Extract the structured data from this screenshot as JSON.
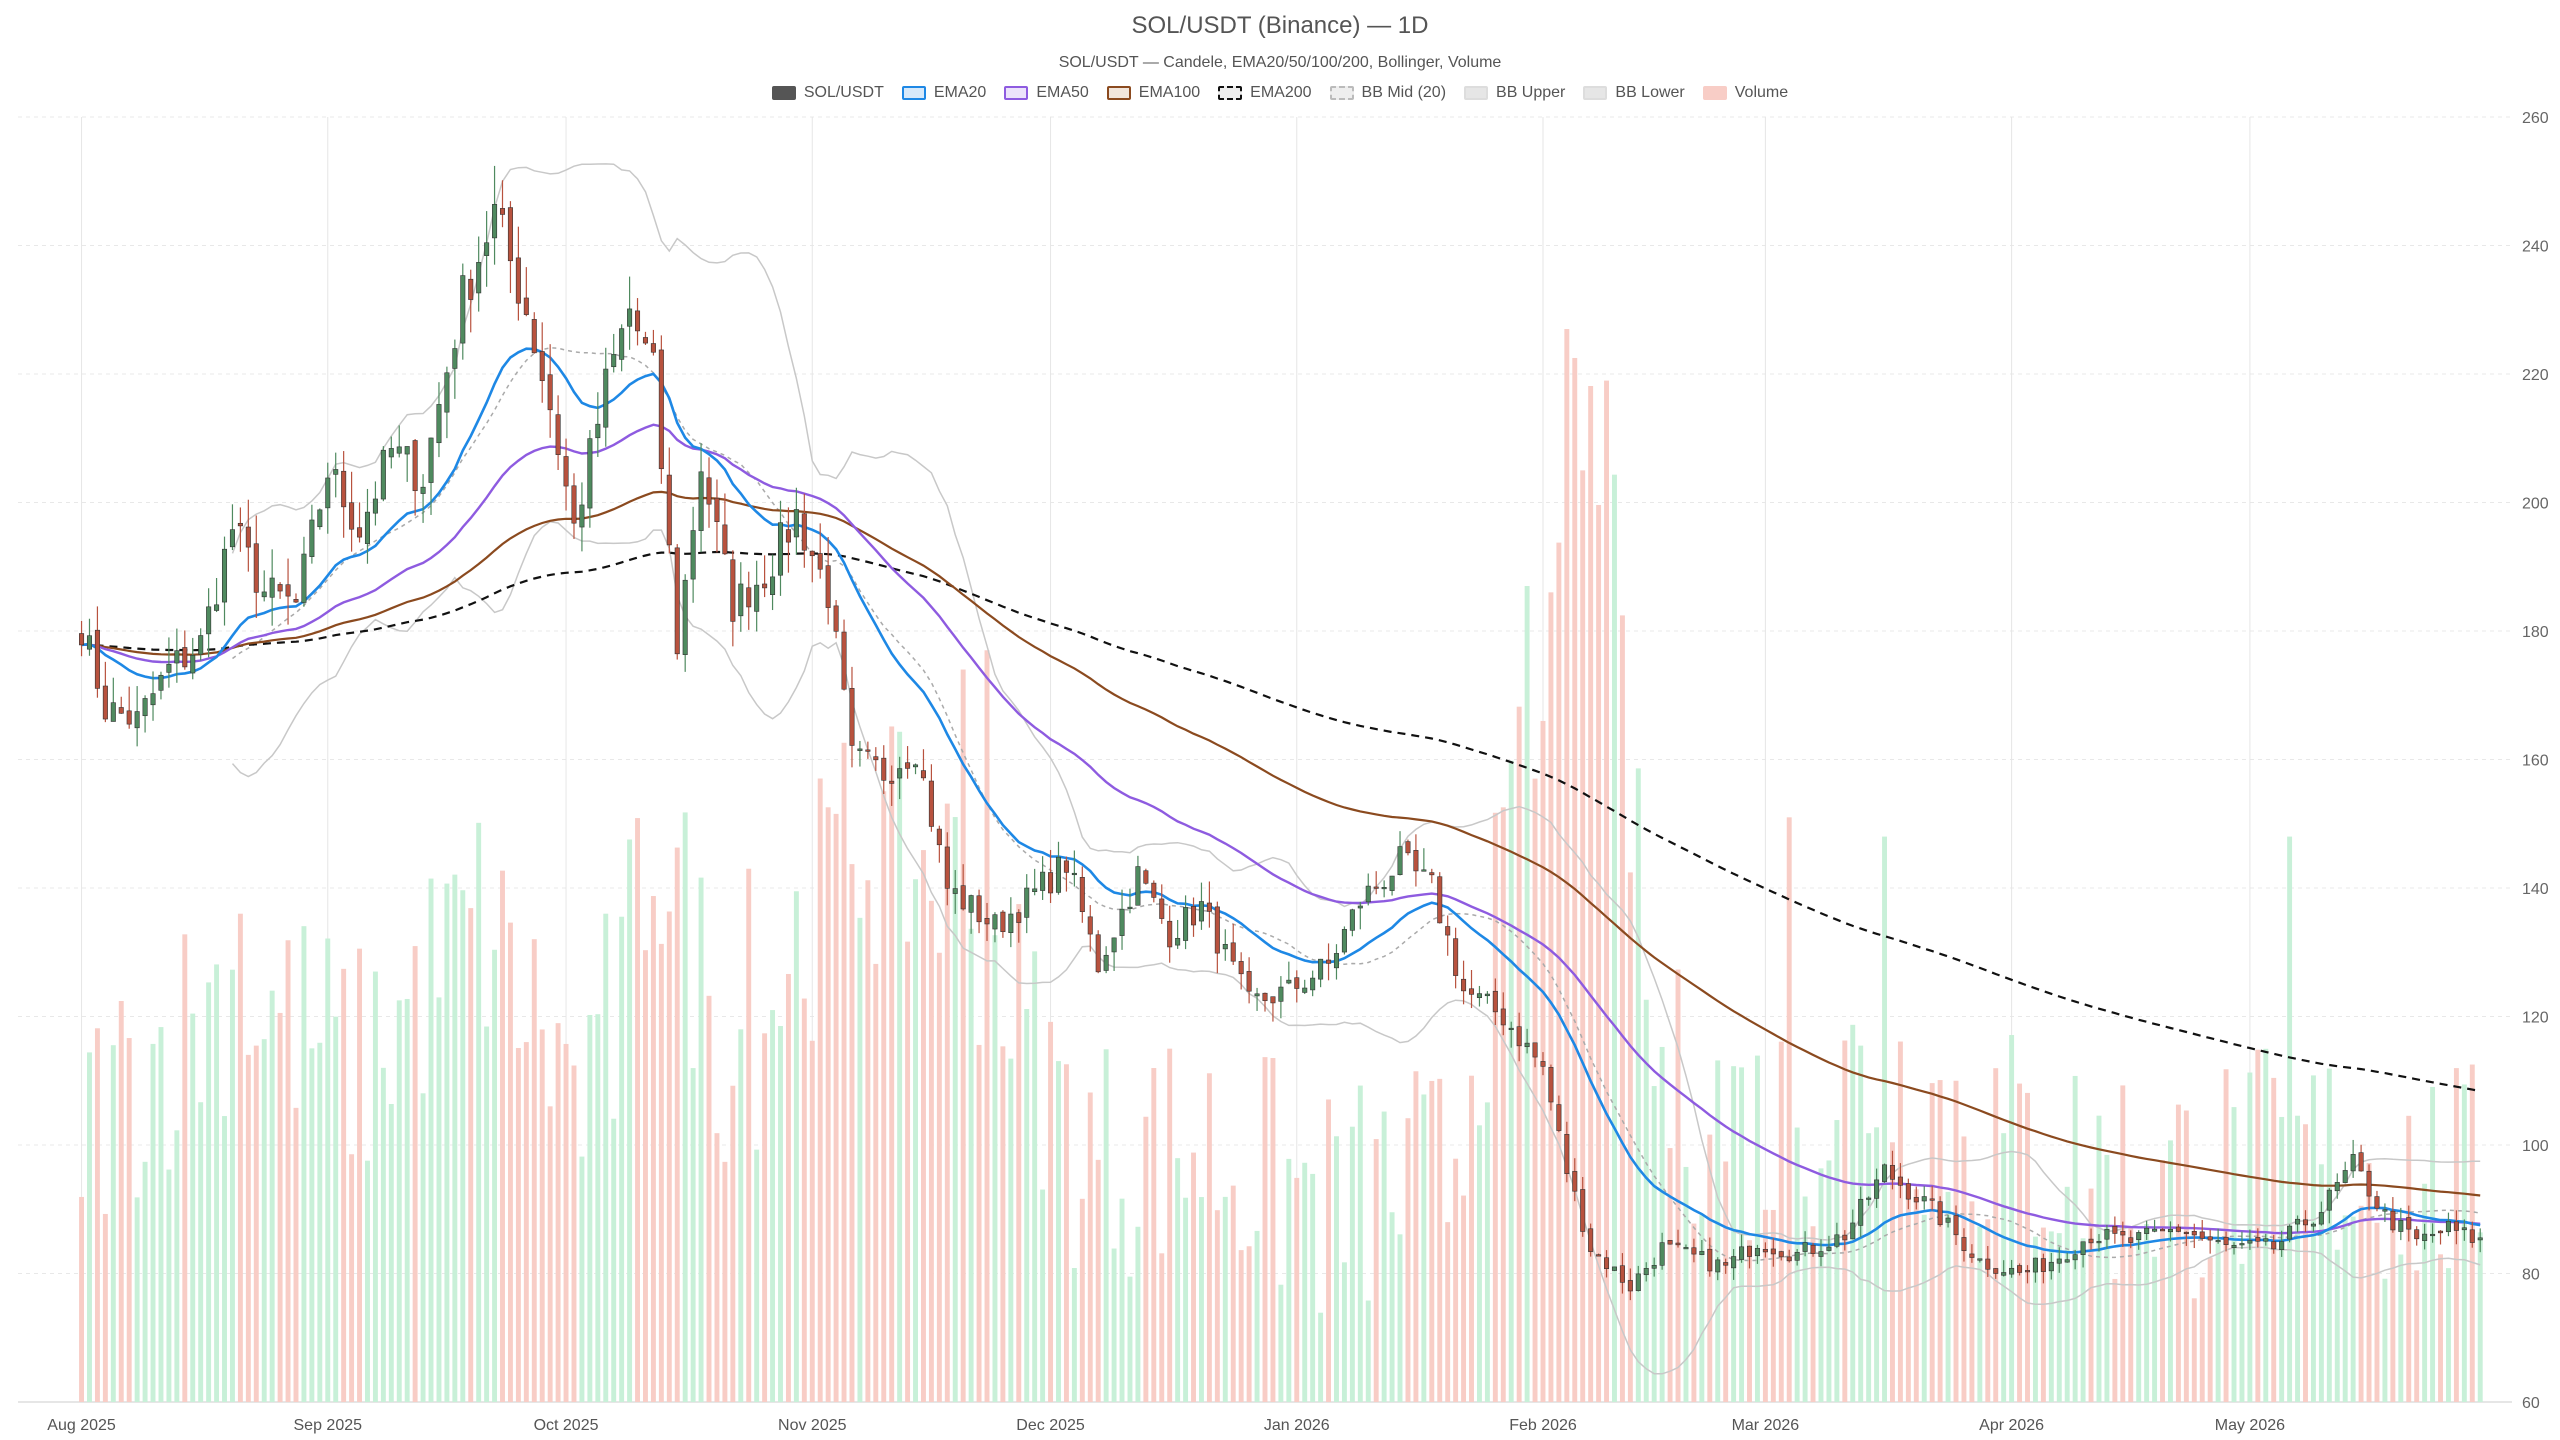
{
  "title": "SOL/USDT (Binance) — 1D",
  "subtitle": "SOL/USDT — Candele, EMA20/50/100/200, Bollinger, Volume",
  "legend": [
    {
      "label": "SOL/USDT",
      "color": "#555555",
      "style": "solid"
    },
    {
      "label": "EMA20",
      "color": "#1e88e5",
      "style": "solid"
    },
    {
      "label": "EMA50",
      "color": "#8e5be0",
      "style": "solid"
    },
    {
      "label": "EMA100",
      "color": "#8b4a1f",
      "style": "solid"
    },
    {
      "label": "EMA200",
      "color": "#111111",
      "style": "dashed"
    },
    {
      "label": "BB Mid (20)",
      "color": "#aaaaaa",
      "style": "dashed"
    },
    {
      "label": "BB Upper",
      "color": "#bbbbbb",
      "style": "solid"
    },
    {
      "label": "BB Lower",
      "color": "#bbbbbb",
      "style": "solid"
    },
    {
      "label": "Volume",
      "color": "#f4b4ac",
      "style": "solid"
    }
  ],
  "chart_data": {
    "type": "candlestick",
    "x_ticks": [
      "Aug 2025",
      "Sep 2025",
      "Oct 2025",
      "Nov 2025",
      "Dec 2025",
      "Jan 2026",
      "Feb 2026",
      "Mar 2026",
      "Apr 2026",
      "May 2026"
    ],
    "y_ticks": [
      60,
      80,
      100,
      120,
      140,
      160,
      180,
      200,
      220,
      240,
      260
    ],
    "ylim": [
      60,
      260
    ],
    "grid": true,
    "colors": {
      "up": "#4f8a5f",
      "down": "#b8523e",
      "vol_up": "#c8f0d8",
      "vol_down": "#f8cdc6"
    },
    "close_anchors": [
      [
        "2025-08-01",
        181
      ],
      [
        "2025-08-04",
        168
      ],
      [
        "2025-08-08",
        166
      ],
      [
        "2025-08-12",
        174
      ],
      [
        "2025-08-16",
        178
      ],
      [
        "2025-08-20",
        196
      ],
      [
        "2025-08-24",
        186
      ],
      [
        "2025-08-28",
        184
      ],
      [
        "2025-09-01",
        205
      ],
      [
        "2025-09-05",
        196
      ],
      [
        "2025-09-09",
        208
      ],
      [
        "2025-09-13",
        204
      ],
      [
        "2025-09-18",
        232
      ],
      [
        "2025-09-22",
        245
      ],
      [
        "2025-09-26",
        230
      ],
      [
        "2025-09-29",
        215
      ],
      [
        "2025-10-02",
        196
      ],
      [
        "2025-10-06",
        218
      ],
      [
        "2025-10-09",
        230
      ],
      [
        "2025-10-12",
        220
      ],
      [
        "2025-10-15",
        178
      ],
      [
        "2025-10-18",
        206
      ],
      [
        "2025-10-22",
        184
      ],
      [
        "2025-10-26",
        189
      ],
      [
        "2025-10-30",
        198
      ],
      [
        "2025-11-03",
        186
      ],
      [
        "2025-11-06",
        160
      ],
      [
        "2025-11-10",
        158
      ],
      [
        "2025-11-14",
        162
      ],
      [
        "2025-11-18",
        140
      ],
      [
        "2025-11-24",
        134
      ],
      [
        "2025-11-28",
        138
      ],
      [
        "2025-12-03",
        144
      ],
      [
        "2025-12-07",
        128
      ],
      [
        "2025-12-12",
        142
      ],
      [
        "2025-12-16",
        133
      ],
      [
        "2025-12-20",
        137
      ],
      [
        "2025-12-26",
        122
      ],
      [
        "2025-12-31",
        124
      ],
      [
        "2026-01-05",
        128
      ],
      [
        "2026-01-09",
        138
      ],
      [
        "2026-01-14",
        144
      ],
      [
        "2026-01-18",
        140
      ],
      [
        "2026-01-22",
        124
      ],
      [
        "2026-01-27",
        120
      ],
      [
        "2026-02-01",
        112
      ],
      [
        "2026-02-04",
        96
      ],
      [
        "2026-02-07",
        84
      ],
      [
        "2026-02-12",
        78
      ],
      [
        "2026-02-16",
        84
      ],
      [
        "2026-02-24",
        81
      ],
      [
        "2026-02-28",
        85
      ],
      [
        "2026-03-05",
        83
      ],
      [
        "2026-03-11",
        86
      ],
      [
        "2026-03-16",
        96
      ],
      [
        "2026-03-22",
        90
      ],
      [
        "2026-03-28",
        82
      ],
      [
        "2026-04-02",
        80
      ],
      [
        "2026-04-06",
        82
      ],
      [
        "2026-04-11",
        86
      ],
      [
        "2026-04-16",
        85
      ],
      [
        "2026-04-22",
        87
      ],
      [
        "2026-04-28",
        84
      ],
      [
        "2026-05-04",
        84
      ],
      [
        "2026-05-10",
        90
      ],
      [
        "2026-05-14",
        97
      ],
      [
        "2026-05-18",
        89
      ],
      [
        "2026-05-22",
        85
      ],
      [
        "2026-05-26",
        87
      ],
      [
        "2026-05-30",
        85
      ]
    ],
    "volume_anchors": [
      [
        "2025-08-01",
        103
      ],
      [
        "2025-08-20",
        125
      ],
      [
        "2025-09-05",
        112
      ],
      [
        "2025-09-20",
        135
      ],
      [
        "2025-10-05",
        102
      ],
      [
        "2025-10-12",
        150
      ],
      [
        "2025-10-22",
        112
      ],
      [
        "2025-11-06",
        148
      ],
      [
        "2025-11-20",
        140
      ],
      [
        "2025-12-05",
        98
      ],
      [
        "2025-12-20",
        100
      ],
      [
        "2026-01-05",
        90
      ],
      [
        "2026-01-20",
        95
      ],
      [
        "2026-02-01",
        170
      ],
      [
        "2026-02-07",
        230
      ],
      [
        "2026-02-15",
        110
      ],
      [
        "2026-03-01",
        102
      ],
      [
        "2026-03-15",
        112
      ],
      [
        "2026-04-01",
        100
      ],
      [
        "2026-04-20",
        94
      ],
      [
        "2026-05-10",
        98
      ],
      [
        "2026-05-30",
        93
      ]
    ],
    "volume_spikes": [
      [
        "2026-02-04",
        227
      ],
      [
        "2026-02-06",
        205
      ],
      [
        "2026-01-30",
        187
      ],
      [
        "2026-02-01",
        166
      ],
      [
        "2025-11-20",
        174
      ],
      [
        "2025-11-23",
        177
      ],
      [
        "2026-03-04",
        151
      ],
      [
        "2026-03-16",
        148
      ],
      [
        "2026-05-06",
        148
      ],
      [
        "2025-10-24",
        143
      ],
      [
        "2025-08-21",
        136
      ],
      [
        "2025-10-06",
        136
      ]
    ]
  }
}
